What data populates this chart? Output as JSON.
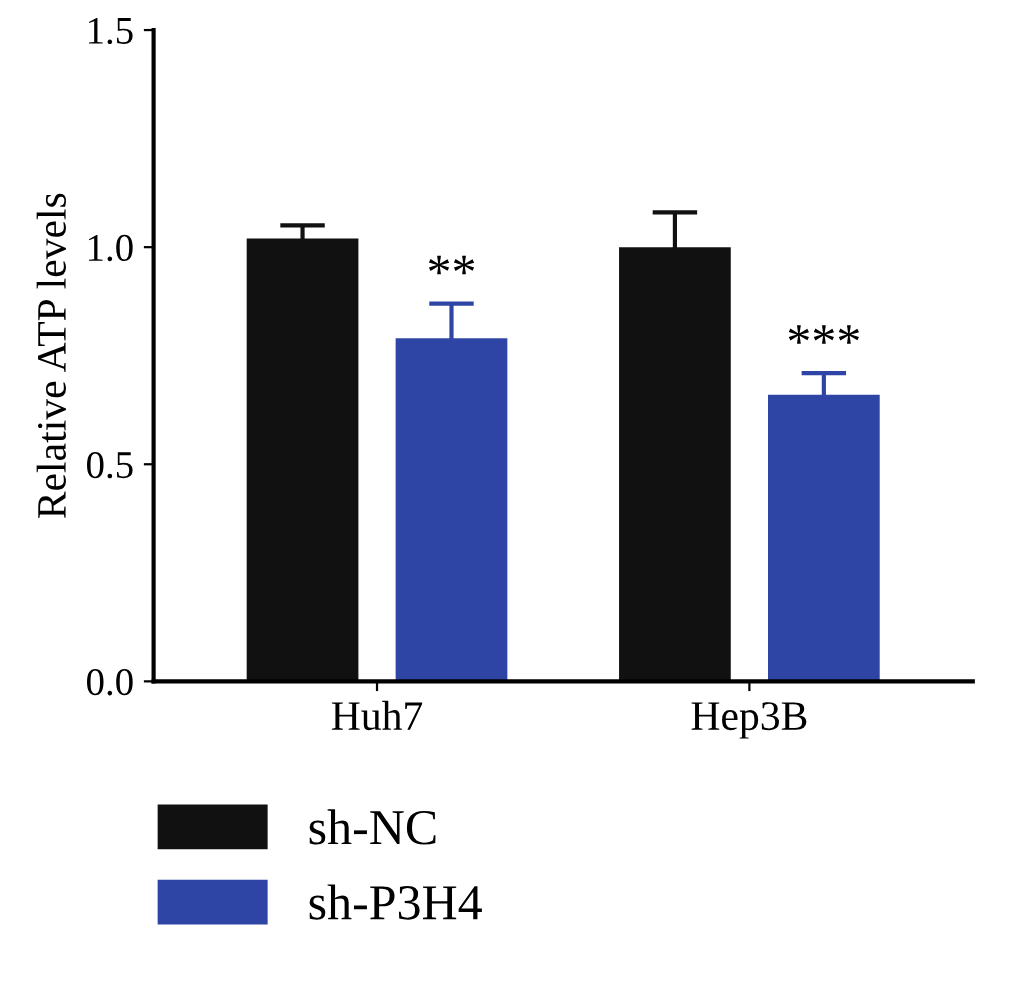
{
  "chart_data": {
    "type": "bar",
    "ylabel": "Relative ATP levels",
    "categories": [
      "Huh7",
      "Hep3B"
    ],
    "series": [
      {
        "name": "sh-NC",
        "color": "#111111",
        "values": [
          1.02,
          1.0
        ],
        "errors": [
          0.03,
          0.08
        ]
      },
      {
        "name": "sh-P3H4",
        "color": "#2f45a6",
        "values": [
          0.79,
          0.66
        ],
        "errors": [
          0.08,
          0.05
        ]
      }
    ],
    "ylim": [
      0,
      1.5
    ],
    "yticks": [
      {
        "value": 0,
        "label": "0.0"
      },
      0.5,
      {
        "value": 1,
        "label": "1.0"
      },
      1.5
    ],
    "grid": false,
    "legend": "bottom",
    "annotations": [
      "**",
      "***"
    ]
  }
}
